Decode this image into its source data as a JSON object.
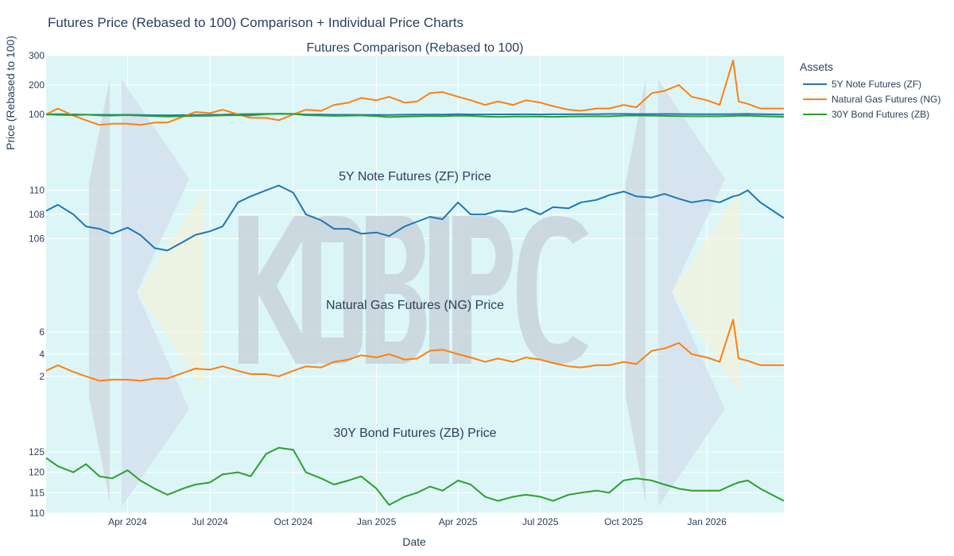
{
  "title": "Futures Price (Rebased to 100) Comparison + Individual Price Charts",
  "watermark": "KOBIPC",
  "legend": {
    "title": "Assets",
    "items": [
      {
        "label": "5Y Note Futures (ZF)",
        "color": "#1f77b4"
      },
      {
        "label": "Natural Gas Futures (NG)",
        "color": "#ff7f0e"
      },
      {
        "label": "30Y Bond Futures (ZB)",
        "color": "#2ca02c"
      }
    ]
  },
  "chart_data": {
    "type": "line",
    "xlabel": "Date",
    "ylabel": "Price (Rebased to 100)",
    "xlim": [
      "2024-01-02",
      "2026-03-27"
    ],
    "x_ticks": [
      {
        "date": "2024-04-01",
        "label": "Apr 2024"
      },
      {
        "date": "2024-07-01",
        "label": "Jul 2024"
      },
      {
        "date": "2024-10-01",
        "label": "Oct 2024"
      },
      {
        "date": "2025-01-01",
        "label": "Jan 2025"
      },
      {
        "date": "2025-04-01",
        "label": "Apr 2025"
      },
      {
        "date": "2025-07-01",
        "label": "Jul 2025"
      },
      {
        "date": "2025-10-01",
        "label": "Oct 2025"
      },
      {
        "date": "2026-01-01",
        "label": "Jan 2026"
      }
    ],
    "x": [
      "2024-01-02",
      "2024-01-15",
      "2024-02-01",
      "2024-02-15",
      "2024-03-01",
      "2024-03-15",
      "2024-04-01",
      "2024-04-15",
      "2024-05-01",
      "2024-05-15",
      "2024-06-01",
      "2024-06-15",
      "2024-07-01",
      "2024-07-15",
      "2024-08-01",
      "2024-08-15",
      "2024-09-01",
      "2024-09-15",
      "2024-10-01",
      "2024-10-15",
      "2024-11-01",
      "2024-11-15",
      "2024-12-01",
      "2024-12-15",
      "2025-01-01",
      "2025-01-15",
      "2025-02-01",
      "2025-02-15",
      "2025-03-01",
      "2025-03-15",
      "2025-04-01",
      "2025-04-15",
      "2025-05-01",
      "2025-05-15",
      "2025-06-01",
      "2025-06-15",
      "2025-07-01",
      "2025-07-15",
      "2025-08-01",
      "2025-08-15",
      "2025-09-01",
      "2025-09-15",
      "2025-10-01",
      "2025-10-15",
      "2025-11-01",
      "2025-11-15",
      "2025-12-01",
      "2025-12-15",
      "2026-01-01",
      "2026-01-15",
      "2026-01-30",
      "2026-02-05",
      "2026-02-15",
      "2026-03-01",
      "2026-03-27"
    ],
    "series": [
      {
        "name": "5Y Note Futures (ZF)",
        "color": "#1f77b4",
        "values": [
          108.3,
          108.8,
          108.0,
          107.0,
          106.8,
          106.4,
          106.9,
          106.3,
          105.2,
          105.0,
          105.7,
          106.3,
          106.6,
          107.0,
          109.0,
          109.5,
          110.0,
          110.4,
          109.8,
          108.0,
          107.5,
          106.8,
          106.8,
          106.4,
          106.5,
          106.2,
          107.0,
          107.4,
          107.8,
          107.6,
          109.0,
          108.0,
          108.0,
          108.3,
          108.2,
          108.5,
          108.0,
          108.6,
          108.5,
          109.0,
          109.2,
          109.6,
          109.9,
          109.5,
          109.4,
          109.7,
          109.3,
          109.0,
          109.2,
          109.0,
          109.5,
          109.6,
          110.0,
          109.0,
          107.7
        ]
      },
      {
        "name": "Natural Gas Futures (NG)",
        "color": "#ff7f0e",
        "values": [
          2.5,
          3.0,
          2.4,
          2.0,
          1.6,
          1.7,
          1.7,
          1.6,
          1.8,
          1.8,
          2.3,
          2.7,
          2.6,
          2.9,
          2.5,
          2.2,
          2.2,
          2.0,
          2.5,
          2.9,
          2.8,
          3.3,
          3.5,
          3.9,
          3.7,
          4.0,
          3.5,
          3.6,
          4.3,
          4.4,
          4.0,
          3.7,
          3.3,
          3.6,
          3.3,
          3.7,
          3.5,
          3.2,
          2.9,
          2.8,
          3.0,
          3.0,
          3.3,
          3.1,
          4.3,
          4.5,
          5.0,
          4.0,
          3.7,
          3.3,
          7.1,
          3.6,
          3.4,
          3.0,
          3.0
        ]
      },
      {
        "name": "30Y Bond Futures (ZB)",
        "color": "#2ca02c",
        "values": [
          123.5,
          121.5,
          120,
          122,
          119,
          118.5,
          120.5,
          118,
          116,
          114.5,
          116,
          117,
          117.5,
          119.5,
          120,
          119,
          124.5,
          126,
          125.5,
          120,
          118.5,
          117,
          118,
          119,
          116,
          112,
          114,
          115,
          116.5,
          115.5,
          118,
          117,
          114,
          113,
          114,
          114.5,
          114,
          113,
          114.5,
          115,
          115.5,
          115,
          118,
          118.5,
          118,
          117,
          116,
          115.5,
          115.5,
          115.5,
          117,
          117.5,
          118,
          116,
          113
        ]
      }
    ],
    "panels": [
      {
        "title": "Futures Comparison (Rebased to 100)",
        "series": [
          0,
          1,
          2
        ],
        "rebased": true,
        "ylim": [
          54,
          300
        ],
        "y_ticks": [
          100,
          200,
          300
        ]
      },
      {
        "title": "5Y Note Futures (ZF) Price",
        "series": [
          0
        ],
        "ylim": [
          104.5,
          110.5
        ],
        "y_ticks": [
          106,
          108,
          110
        ]
      },
      {
        "title": "Natural Gas Futures (NG) Price",
        "series": [
          1
        ],
        "ylim": [
          1.2,
          7.7
        ],
        "y_ticks": [
          2,
          4,
          6
        ]
      },
      {
        "title": "30Y Bond Futures (ZB) Price",
        "series": [
          2
        ],
        "ylim": [
          110,
          127.7
        ],
        "y_ticks": [
          110,
          115,
          120,
          125
        ]
      }
    ]
  }
}
